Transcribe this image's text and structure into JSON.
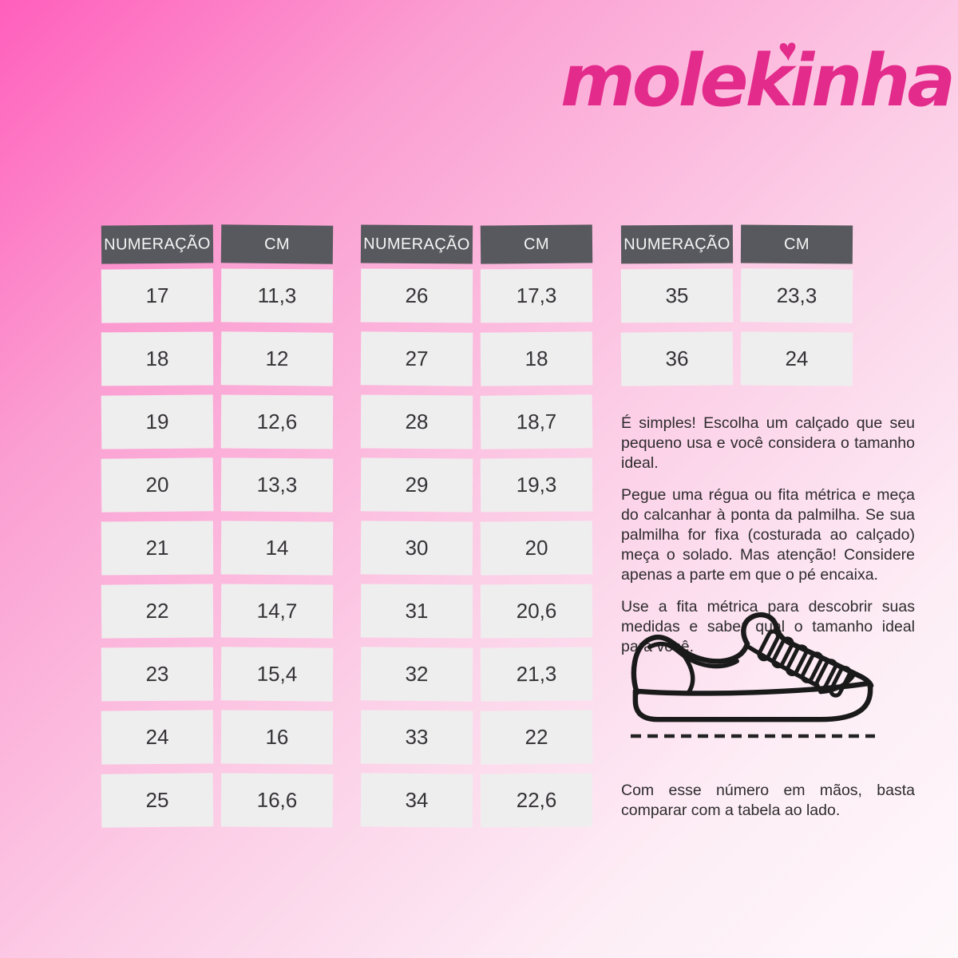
{
  "brand": {
    "name": "molekinha",
    "heart_glyph": "♥",
    "logo_color": "#e32b8b"
  },
  "tables": [
    {
      "headers": [
        "NUMERAÇÃO",
        "CM"
      ],
      "rows": [
        [
          "17",
          "11,3"
        ],
        [
          "18",
          "12"
        ],
        [
          "19",
          "12,6"
        ],
        [
          "20",
          "13,3"
        ],
        [
          "21",
          "14"
        ],
        [
          "22",
          "14,7"
        ],
        [
          "23",
          "15,4"
        ],
        [
          "24",
          "16"
        ],
        [
          "25",
          "16,6"
        ]
      ]
    },
    {
      "headers": [
        "NUMERAÇÃO",
        "CM"
      ],
      "rows": [
        [
          "26",
          "17,3"
        ],
        [
          "27",
          "18"
        ],
        [
          "28",
          "18,7"
        ],
        [
          "29",
          "19,3"
        ],
        [
          "30",
          "20"
        ],
        [
          "31",
          "20,6"
        ],
        [
          "32",
          "21,3"
        ],
        [
          "33",
          "22"
        ],
        [
          "34",
          "22,6"
        ]
      ]
    },
    {
      "headers": [
        "NUMERAÇÃO",
        "CM"
      ],
      "rows": [
        [
          "35",
          "23,3"
        ],
        [
          "36",
          "24"
        ]
      ]
    }
  ],
  "instructions": {
    "p1": "É simples! Escolha um calçado que seu pequeno usa e você considera o tamanho ideal.",
    "p2": "Pegue uma régua ou fita métrica e meça do calcanhar à ponta da palmilha. Se sua palmilha for fixa (costurada ao calçado) meça o solado. Mas atenção! Considere apenas a parte em que o pé encaixa.",
    "p3": "Use a fita métrica para descobrir suas medidas e saber qual o tamanho ideal para você.",
    "p4": "Com esse número em mãos, basta comparar com a tabela ao lado."
  },
  "icons": {
    "logo_heart": "heart-icon",
    "illustration": "sneaker-icon"
  },
  "colors": {
    "header_bg": "#58595e",
    "header_text": "#f6f6f6",
    "cell_bg": "#efeeee",
    "cell_text": "#343236",
    "gradient_start": "#ff5fbc",
    "gradient_end": "#fef8fb",
    "logo_pink": "#e32b8b",
    "body_text": "#2d2b2d",
    "line_art": "#1a1a1a"
  }
}
